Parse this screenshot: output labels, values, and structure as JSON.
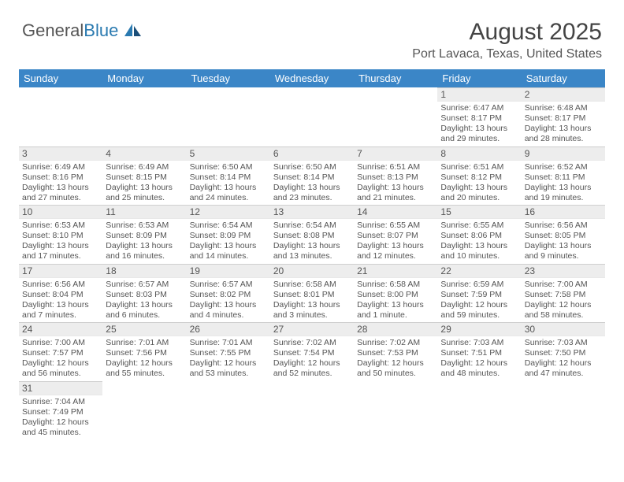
{
  "brand": {
    "part1": "General",
    "part2": "Blue"
  },
  "title": "August 2025",
  "location": "Port Lavaca, Texas, United States",
  "colors": {
    "header_bg": "#3b86c7",
    "header_text": "#ffffff",
    "daynum_bg": "#ededed",
    "text": "#555555",
    "divider": "#3b86c7"
  },
  "fonts": {
    "title_size": 30,
    "subtitle_size": 16,
    "dayhead_size": 13,
    "body_size": 10.5
  },
  "day_headers": [
    "Sunday",
    "Monday",
    "Tuesday",
    "Wednesday",
    "Thursday",
    "Friday",
    "Saturday"
  ],
  "weeks": [
    [
      null,
      null,
      null,
      null,
      null,
      {
        "n": "1",
        "sr": "6:47 AM",
        "ss": "8:17 PM",
        "dl": "13 hours and 29 minutes."
      },
      {
        "n": "2",
        "sr": "6:48 AM",
        "ss": "8:17 PM",
        "dl": "13 hours and 28 minutes."
      }
    ],
    [
      {
        "n": "3",
        "sr": "6:49 AM",
        "ss": "8:16 PM",
        "dl": "13 hours and 27 minutes."
      },
      {
        "n": "4",
        "sr": "6:49 AM",
        "ss": "8:15 PM",
        "dl": "13 hours and 25 minutes."
      },
      {
        "n": "5",
        "sr": "6:50 AM",
        "ss": "8:14 PM",
        "dl": "13 hours and 24 minutes."
      },
      {
        "n": "6",
        "sr": "6:50 AM",
        "ss": "8:14 PM",
        "dl": "13 hours and 23 minutes."
      },
      {
        "n": "7",
        "sr": "6:51 AM",
        "ss": "8:13 PM",
        "dl": "13 hours and 21 minutes."
      },
      {
        "n": "8",
        "sr": "6:51 AM",
        "ss": "8:12 PM",
        "dl": "13 hours and 20 minutes."
      },
      {
        "n": "9",
        "sr": "6:52 AM",
        "ss": "8:11 PM",
        "dl": "13 hours and 19 minutes."
      }
    ],
    [
      {
        "n": "10",
        "sr": "6:53 AM",
        "ss": "8:10 PM",
        "dl": "13 hours and 17 minutes."
      },
      {
        "n": "11",
        "sr": "6:53 AM",
        "ss": "8:09 PM",
        "dl": "13 hours and 16 minutes."
      },
      {
        "n": "12",
        "sr": "6:54 AM",
        "ss": "8:09 PM",
        "dl": "13 hours and 14 minutes."
      },
      {
        "n": "13",
        "sr": "6:54 AM",
        "ss": "8:08 PM",
        "dl": "13 hours and 13 minutes."
      },
      {
        "n": "14",
        "sr": "6:55 AM",
        "ss": "8:07 PM",
        "dl": "13 hours and 12 minutes."
      },
      {
        "n": "15",
        "sr": "6:55 AM",
        "ss": "8:06 PM",
        "dl": "13 hours and 10 minutes."
      },
      {
        "n": "16",
        "sr": "6:56 AM",
        "ss": "8:05 PM",
        "dl": "13 hours and 9 minutes."
      }
    ],
    [
      {
        "n": "17",
        "sr": "6:56 AM",
        "ss": "8:04 PM",
        "dl": "13 hours and 7 minutes."
      },
      {
        "n": "18",
        "sr": "6:57 AM",
        "ss": "8:03 PM",
        "dl": "13 hours and 6 minutes."
      },
      {
        "n": "19",
        "sr": "6:57 AM",
        "ss": "8:02 PM",
        "dl": "13 hours and 4 minutes."
      },
      {
        "n": "20",
        "sr": "6:58 AM",
        "ss": "8:01 PM",
        "dl": "13 hours and 3 minutes."
      },
      {
        "n": "21",
        "sr": "6:58 AM",
        "ss": "8:00 PM",
        "dl": "13 hours and 1 minute."
      },
      {
        "n": "22",
        "sr": "6:59 AM",
        "ss": "7:59 PM",
        "dl": "12 hours and 59 minutes."
      },
      {
        "n": "23",
        "sr": "7:00 AM",
        "ss": "7:58 PM",
        "dl": "12 hours and 58 minutes."
      }
    ],
    [
      {
        "n": "24",
        "sr": "7:00 AM",
        "ss": "7:57 PM",
        "dl": "12 hours and 56 minutes."
      },
      {
        "n": "25",
        "sr": "7:01 AM",
        "ss": "7:56 PM",
        "dl": "12 hours and 55 minutes."
      },
      {
        "n": "26",
        "sr": "7:01 AM",
        "ss": "7:55 PM",
        "dl": "12 hours and 53 minutes."
      },
      {
        "n": "27",
        "sr": "7:02 AM",
        "ss": "7:54 PM",
        "dl": "12 hours and 52 minutes."
      },
      {
        "n": "28",
        "sr": "7:02 AM",
        "ss": "7:53 PM",
        "dl": "12 hours and 50 minutes."
      },
      {
        "n": "29",
        "sr": "7:03 AM",
        "ss": "7:51 PM",
        "dl": "12 hours and 48 minutes."
      },
      {
        "n": "30",
        "sr": "7:03 AM",
        "ss": "7:50 PM",
        "dl": "12 hours and 47 minutes."
      }
    ],
    [
      {
        "n": "31",
        "sr": "7:04 AM",
        "ss": "7:49 PM",
        "dl": "12 hours and 45 minutes."
      },
      null,
      null,
      null,
      null,
      null,
      null
    ]
  ],
  "labels": {
    "sunrise": "Sunrise:",
    "sunset": "Sunset:",
    "daylight": "Daylight:"
  }
}
